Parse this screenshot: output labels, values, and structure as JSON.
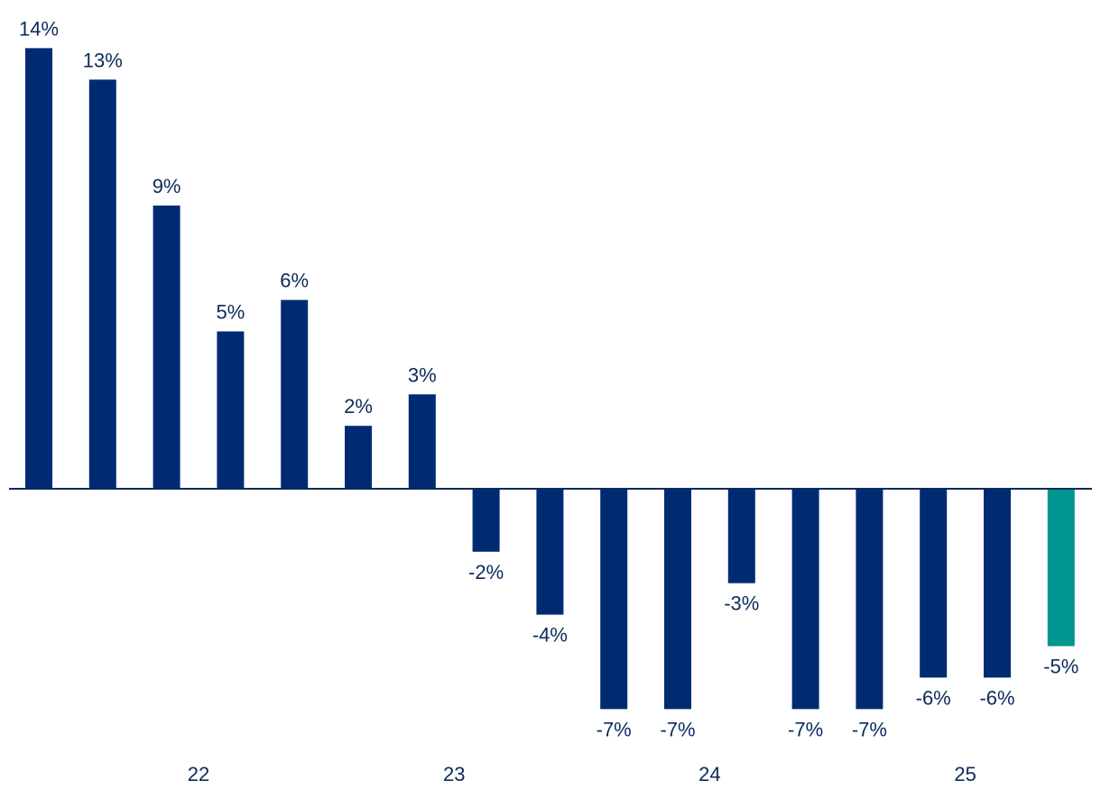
{
  "chart_data": {
    "type": "bar",
    "title": "",
    "xlabel": "",
    "ylabel": "",
    "ylim": [
      -7,
      14
    ],
    "grid": false,
    "colors": {
      "default": "#002b73",
      "highlight": "#00968f",
      "axis": "#0d2a5a",
      "text": "#0d2a5a"
    },
    "values": [
      14,
      13,
      9,
      5,
      6,
      2,
      3,
      -2,
      -4,
      -7,
      -7,
      -3,
      -7,
      -7,
      -6,
      -6,
      -5
    ],
    "labels": [
      "14%",
      "13%",
      "9%",
      "5%",
      "6%",
      "2%",
      "3%",
      "-2%",
      "-4%",
      "-7%",
      "-7%",
      "-3%",
      "-7%",
      "-7%",
      "-6%",
      "-6%",
      "-5%"
    ],
    "highlight": [
      false,
      false,
      false,
      false,
      false,
      false,
      false,
      false,
      false,
      false,
      false,
      false,
      false,
      false,
      false,
      false,
      true
    ],
    "x_axis_labels": [
      {
        "text": "22",
        "between_bars": [
          2,
          3
        ]
      },
      {
        "text": "23",
        "between_bars": [
          6,
          7
        ]
      },
      {
        "text": "24",
        "between_bars": [
          10,
          11
        ]
      },
      {
        "text": "25",
        "between_bars": [
          14,
          15
        ]
      }
    ]
  }
}
